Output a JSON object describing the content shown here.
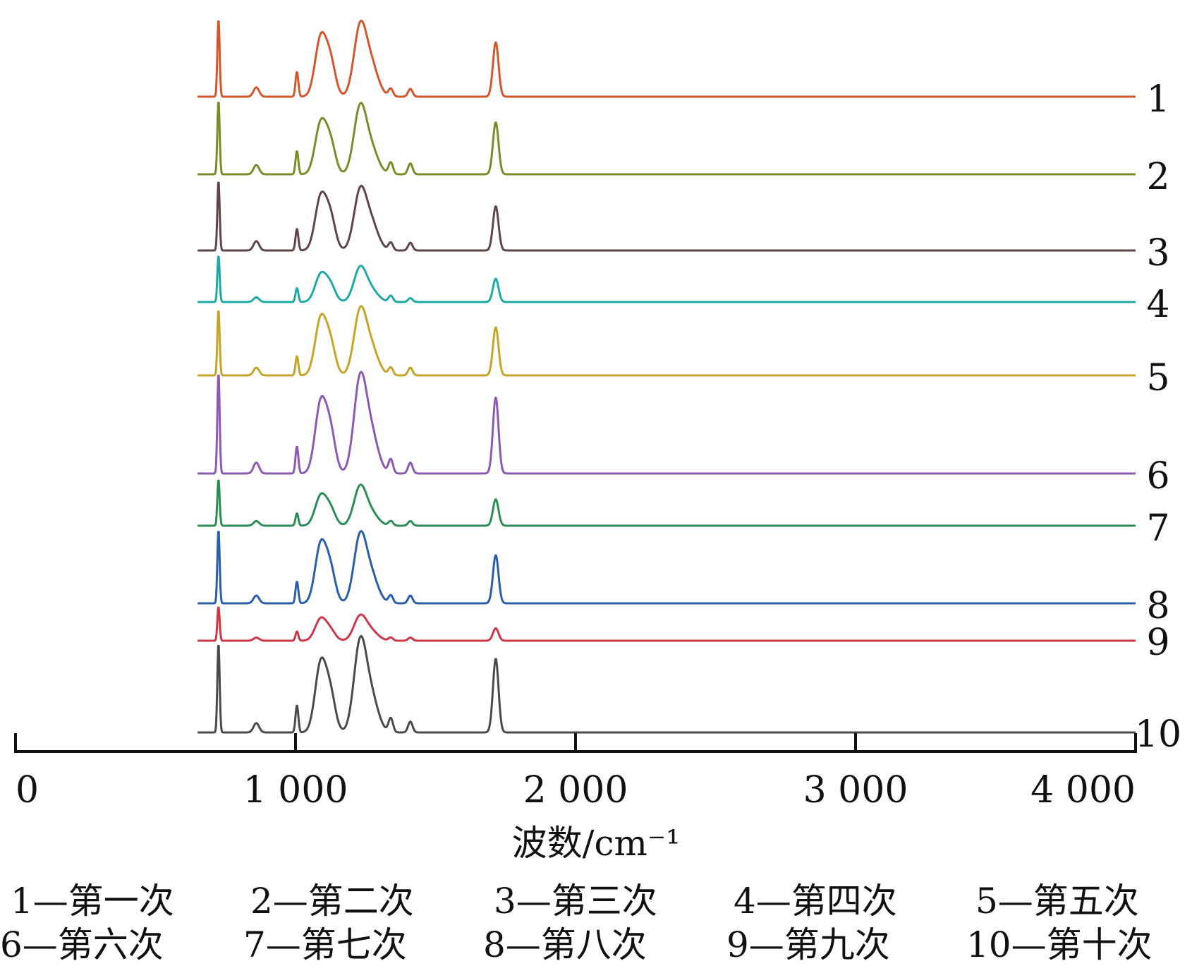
{
  "chart_data": {
    "type": "line",
    "xlabel": "波数/cm⁻¹",
    "xlim": [
      0,
      4000
    ],
    "x_ticks": [
      "0",
      "1 000",
      "2 000",
      "3 000",
      "4 000"
    ],
    "x_tick_values": [
      0,
      1000,
      2000,
      3000,
      4000
    ],
    "data_range": [
      650,
      4000
    ],
    "stacked_offset": true,
    "grid": false,
    "common_peaks": [
      {
        "x": 725,
        "w": 4
      },
      {
        "x": 860,
        "w": 10
      },
      {
        "x": 1005,
        "w": 5
      },
      {
        "x": 1090,
        "w": 20
      },
      {
        "x": 1125,
        "w": 18
      },
      {
        "x": 1230,
        "w": 22
      },
      {
        "x": 1270,
        "w": 25
      },
      {
        "x": 1340,
        "w": 8
      },
      {
        "x": 1410,
        "w": 8
      },
      {
        "x": 1715,
        "w": 10
      }
    ],
    "series": [
      {
        "name": "1",
        "color": "#d2572c",
        "peaks": [
          1.0,
          0.12,
          0.32,
          0.75,
          0.42,
          0.85,
          0.4,
          0.1,
          0.1,
          0.7
        ]
      },
      {
        "name": "2",
        "color": "#7d8a28",
        "peaks": [
          0.95,
          0.12,
          0.3,
          0.65,
          0.38,
          0.82,
          0.32,
          0.15,
          0.14,
          0.67
        ]
      },
      {
        "name": "3",
        "color": "#5e4648",
        "peaks": [
          0.9,
          0.12,
          0.28,
          0.68,
          0.4,
          0.72,
          0.35,
          0.1,
          0.1,
          0.57
        ]
      },
      {
        "name": "4",
        "color": "#1eaaa2",
        "peaks": [
          0.6,
          0.06,
          0.18,
          0.35,
          0.2,
          0.42,
          0.15,
          0.08,
          0.05,
          0.3
        ]
      },
      {
        "name": "5",
        "color": "#c4a52a",
        "peaks": [
          0.85,
          0.1,
          0.25,
          0.72,
          0.38,
          0.78,
          0.35,
          0.1,
          0.1,
          0.62
        ]
      },
      {
        "name": "6",
        "color": "#8c5ab0",
        "peaks": [
          1.3,
          0.14,
          0.35,
          0.9,
          0.5,
          1.15,
          0.5,
          0.18,
          0.14,
          0.98
        ]
      },
      {
        "name": "7",
        "color": "#2c8c56",
        "peaks": [
          0.6,
          0.06,
          0.16,
          0.38,
          0.2,
          0.48,
          0.16,
          0.06,
          0.06,
          0.34
        ]
      },
      {
        "name": "8",
        "color": "#2b5ea8",
        "peaks": [
          0.95,
          0.1,
          0.28,
          0.75,
          0.4,
          0.82,
          0.35,
          0.1,
          0.1,
          0.62
        ]
      },
      {
        "name": "9",
        "color": "#cc3848",
        "peaks": [
          0.44,
          0.04,
          0.12,
          0.28,
          0.12,
          0.3,
          0.12,
          0.04,
          0.04,
          0.16
        ]
      },
      {
        "name": "10",
        "color": "#4a4a4a",
        "peaks": [
          1.15,
          0.12,
          0.35,
          0.88,
          0.45,
          1.1,
          0.45,
          0.18,
          0.14,
          0.95
        ]
      }
    ],
    "legend": [
      "1—第一次",
      "2—第二次",
      "3—第三次",
      "4—第四次",
      "5—第五次",
      "6—第六次",
      "7—第七次",
      "8—第八次",
      "9—第九次",
      "10—第十次"
    ],
    "legend_placement": "bottom"
  },
  "colors": {
    "axis": "#111111"
  }
}
